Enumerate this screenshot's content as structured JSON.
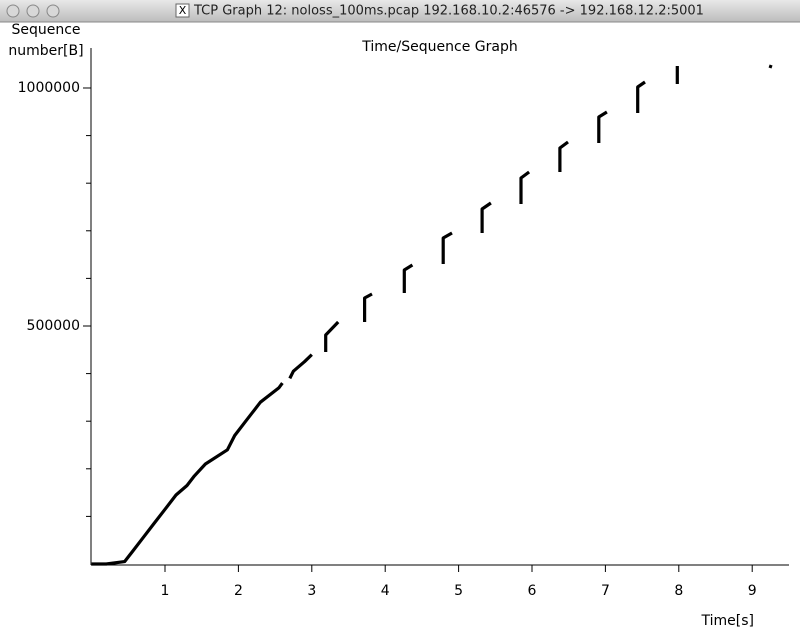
{
  "window": {
    "title": "TCP Graph 12: noloss_100ms.pcap 192.168.10.2:46576 -> 192.168.12.2:5001"
  },
  "chart_data": {
    "type": "line",
    "title": "Time/Sequence Graph",
    "xlabel": "Time[s]",
    "ylabel": "Sequence number[B]",
    "xlim": [
      0,
      9.5
    ],
    "xticks": [
      1,
      2,
      3,
      4,
      5,
      6,
      7,
      8,
      9
    ],
    "ylim": [
      0,
      1084000
    ],
    "yticks": [
      500000,
      1000000
    ],
    "yminorticks": [
      100000,
      200000,
      300000,
      400000,
      600000,
      700000,
      800000,
      900000
    ],
    "series": [
      {
        "name": "Sequence",
        "color": "#000000",
        "x": [
          0.0,
          0.2,
          0.45,
          0.55,
          0.7,
          0.85,
          1.0,
          1.15,
          1.3,
          1.4,
          1.55,
          1.85,
          1.95,
          2.1,
          2.3,
          2.55,
          2.6,
          null,
          2.7,
          2.75,
          2.9,
          3.0,
          null,
          3.19,
          3.19,
          3.36,
          null,
          3.72,
          3.72,
          3.82,
          null,
          4.26,
          4.26,
          4.37,
          null,
          4.79,
          4.79,
          4.91,
          null,
          5.32,
          5.32,
          5.44,
          null,
          5.85,
          5.85,
          5.96,
          null,
          6.38,
          6.38,
          6.49,
          null,
          6.91,
          6.91,
          7.02,
          null,
          7.44,
          7.44,
          7.54,
          null,
          7.98,
          7.98,
          null,
          9.23,
          9.27
        ],
        "values": [
          0,
          0,
          5000,
          25000,
          55000,
          85000,
          115000,
          145000,
          165000,
          185000,
          210000,
          240000,
          270000,
          300000,
          340000,
          370000,
          380000,
          null,
          390000,
          405000,
          425000,
          440000,
          null,
          445400,
          481100,
          508400,
          null,
          508400,
          558800,
          567200,
          null,
          569300,
          617600,
          628100,
          null,
          630200,
          684900,
          695400,
          null,
          695400,
          745800,
          758400,
          null,
          756300,
          810900,
          823500,
          null,
          823500,
          874000,
          886600,
          null,
          884500,
          939100,
          949600,
          null,
          947500,
          1002100,
          1012600,
          null,
          1008400,
          1046200,
          null,
          1046200,
          1044000
        ]
      }
    ]
  }
}
